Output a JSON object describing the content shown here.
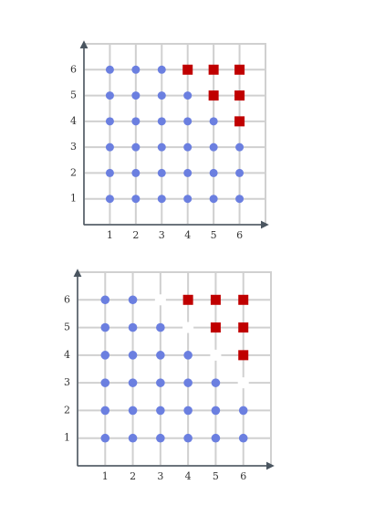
{
  "panels": [
    {
      "xlim": [
        0,
        7
      ],
      "ylim": [
        0,
        7
      ],
      "xticks": [
        1,
        2,
        3,
        4,
        5,
        6
      ],
      "yticks": [
        1,
        2,
        3,
        4,
        5,
        6
      ],
      "dots": [
        [
          1,
          6
        ],
        [
          2,
          6
        ],
        [
          3,
          6
        ],
        [
          1,
          5
        ],
        [
          2,
          5
        ],
        [
          3,
          5
        ],
        [
          4,
          5
        ],
        [
          1,
          4
        ],
        [
          2,
          4
        ],
        [
          3,
          4
        ],
        [
          4,
          4
        ],
        [
          5,
          4
        ],
        [
          1,
          3
        ],
        [
          2,
          3
        ],
        [
          3,
          3
        ],
        [
          4,
          3
        ],
        [
          5,
          3
        ],
        [
          6,
          3
        ],
        [
          1,
          2
        ],
        [
          2,
          2
        ],
        [
          3,
          2
        ],
        [
          4,
          2
        ],
        [
          5,
          2
        ],
        [
          6,
          2
        ],
        [
          1,
          1
        ],
        [
          2,
          1
        ],
        [
          3,
          1
        ],
        [
          4,
          1
        ],
        [
          5,
          1
        ],
        [
          6,
          1
        ]
      ],
      "squares": [
        [
          4,
          6
        ],
        [
          5,
          6
        ],
        [
          6,
          6
        ],
        [
          5,
          5
        ],
        [
          6,
          5
        ],
        [
          6,
          4
        ]
      ],
      "gaps": []
    },
    {
      "xlim": [
        0,
        7
      ],
      "ylim": [
        0,
        7
      ],
      "xticks": [
        1,
        2,
        3,
        4,
        5,
        6
      ],
      "yticks": [
        1,
        2,
        3,
        4,
        5,
        6
      ],
      "dots": [
        [
          1,
          6
        ],
        [
          2,
          6
        ],
        [
          1,
          5
        ],
        [
          2,
          5
        ],
        [
          3,
          5
        ],
        [
          1,
          4
        ],
        [
          2,
          4
        ],
        [
          3,
          4
        ],
        [
          4,
          4
        ],
        [
          1,
          3
        ],
        [
          2,
          3
        ],
        [
          3,
          3
        ],
        [
          4,
          3
        ],
        [
          5,
          3
        ],
        [
          1,
          2
        ],
        [
          2,
          2
        ],
        [
          3,
          2
        ],
        [
          4,
          2
        ],
        [
          5,
          2
        ],
        [
          6,
          2
        ],
        [
          1,
          1
        ],
        [
          2,
          1
        ],
        [
          3,
          1
        ],
        [
          4,
          1
        ],
        [
          5,
          1
        ],
        [
          6,
          1
        ]
      ],
      "squares": [
        [
          4,
          6
        ],
        [
          5,
          6
        ],
        [
          6,
          6
        ],
        [
          5,
          5
        ],
        [
          6,
          5
        ],
        [
          6,
          4
        ]
      ],
      "gaps": [
        [
          3,
          6
        ],
        [
          4,
          5
        ],
        [
          5,
          4
        ],
        [
          6,
          3
        ]
      ]
    }
  ]
}
